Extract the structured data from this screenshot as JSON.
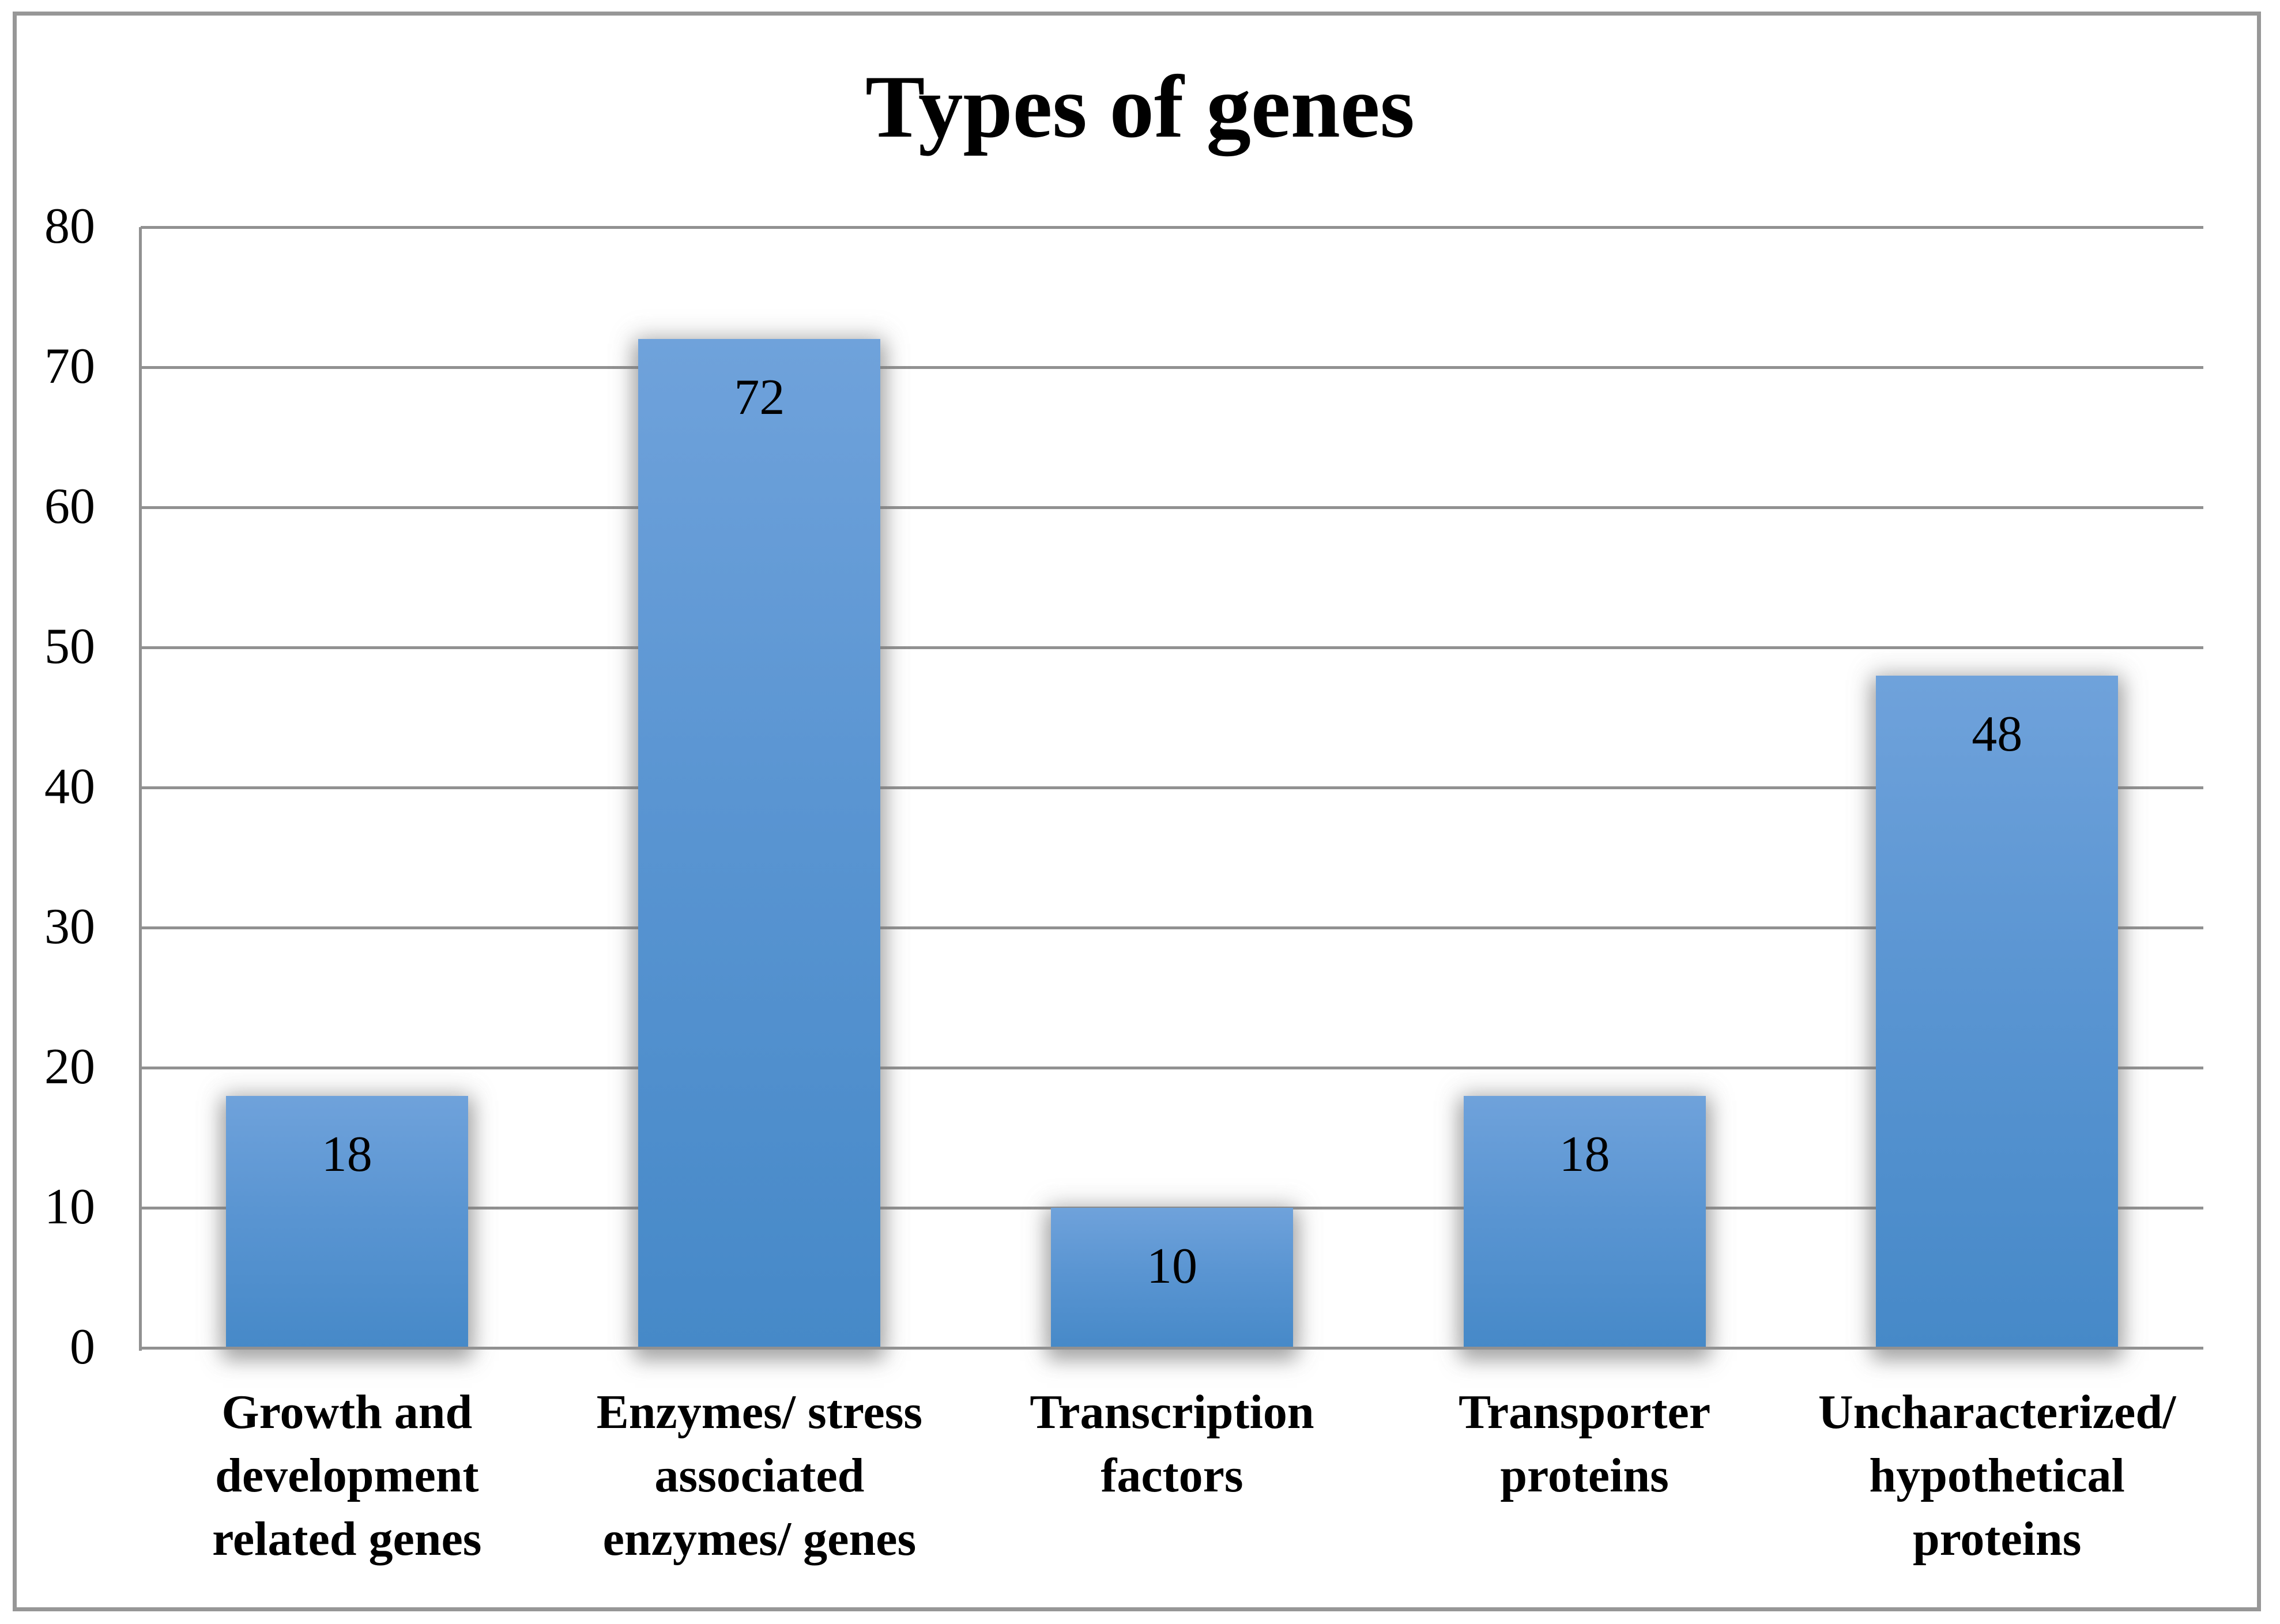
{
  "chart_data": {
    "type": "bar",
    "title": "Types of genes",
    "categories": [
      "Growth and development related genes",
      "Enzymes/ stress associated enzymes/ genes",
      "Transcription factors",
      "Transporter proteins",
      "Uncharacterized/ hypothetical proteins"
    ],
    "category_lines": [
      [
        "Growth and",
        "development",
        "related genes"
      ],
      [
        "Enzymes/ stress",
        "associated",
        "enzymes/ genes"
      ],
      [
        "Transcription",
        "factors"
      ],
      [
        "Transporter",
        "proteins"
      ],
      [
        "Uncharacterized/",
        "hypothetical",
        "proteins"
      ]
    ],
    "values": [
      18,
      72,
      10,
      18,
      48
    ],
    "data_labels": [
      "18",
      "72",
      "10",
      "18",
      "48"
    ],
    "xlabel": "",
    "ylabel": "",
    "ylim": [
      0,
      80
    ],
    "y_ticks": [
      80,
      70,
      60,
      50,
      40,
      30,
      20,
      10,
      0
    ],
    "grid": true,
    "legend_position": "none",
    "colors": {
      "bar_gradient_top": "#6FA2DB",
      "bar_gradient_bottom": "#4689C8",
      "gridline": "#919191",
      "axis_line": "#919191",
      "text": "#000000",
      "frame_border": "#979797",
      "background": "#FFFFFF"
    }
  }
}
